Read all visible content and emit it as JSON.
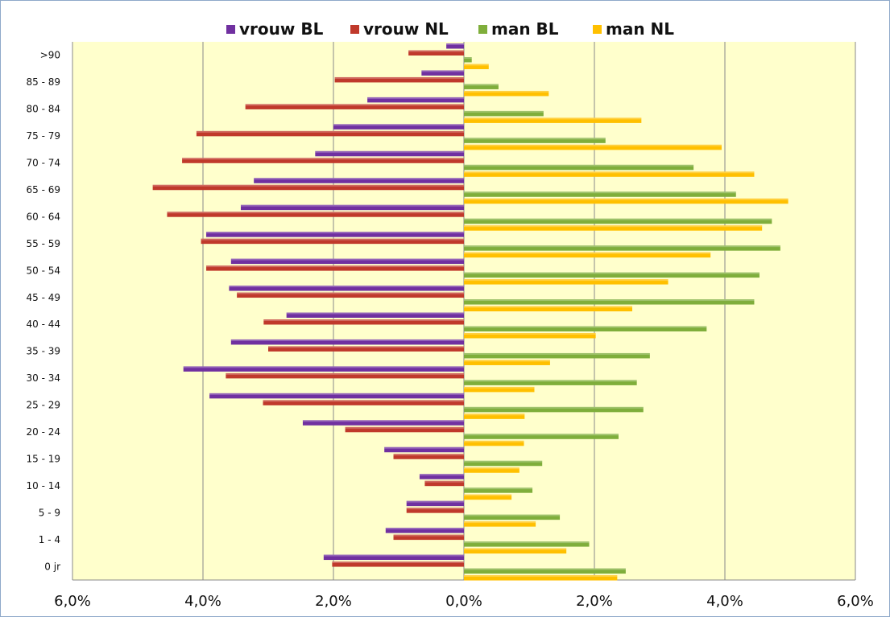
{
  "chart_data": {
    "type": "bar",
    "orientation": "horizontal",
    "categories": [
      "0 jr",
      "1 - 4",
      "5 - 9",
      "10 - 14",
      "15 - 19",
      "20 - 24",
      "25 - 29",
      "30 - 34",
      "35 - 39",
      "40 - 44",
      "45 - 49",
      "50 - 54",
      "55 - 59",
      "60 - 64",
      "65 - 69",
      "70 - 74",
      "75 - 79",
      "80 - 84",
      "85 - 89",
      ">90"
    ],
    "series": [
      {
        "name": "vrouw BL",
        "color": "#7030a0",
        "side": "left",
        "values": [
          2.15,
          1.2,
          0.88,
          0.68,
          1.22,
          2.47,
          3.9,
          4.3,
          3.57,
          2.72,
          3.6,
          3.57,
          3.95,
          3.42,
          3.22,
          2.28,
          2.0,
          1.48,
          0.65,
          0.27
        ]
      },
      {
        "name": "vrouw NL",
        "color": "#c0392b",
        "side": "left",
        "values": [
          2.02,
          1.08,
          0.88,
          0.6,
          1.08,
          1.82,
          3.08,
          3.65,
          3.0,
          3.07,
          3.48,
          3.95,
          4.03,
          4.55,
          4.77,
          4.32,
          4.1,
          3.35,
          1.98,
          0.85
        ]
      },
      {
        "name": "man BL",
        "color": "#7fae3b",
        "side": "right",
        "values": [
          2.48,
          1.92,
          1.47,
          1.05,
          1.2,
          2.37,
          2.75,
          2.65,
          2.85,
          3.72,
          4.45,
          4.53,
          4.85,
          4.72,
          4.17,
          3.52,
          2.17,
          1.22,
          0.53,
          0.12
        ]
      },
      {
        "name": "man NL",
        "color": "#ffc000",
        "side": "right",
        "values": [
          2.35,
          1.57,
          1.1,
          0.73,
          0.85,
          0.92,
          0.93,
          1.08,
          1.32,
          2.02,
          2.58,
          3.13,
          3.78,
          4.57,
          4.97,
          4.45,
          3.95,
          2.72,
          1.3,
          0.38
        ]
      }
    ],
    "x_ticks": [
      "6,0%",
      "4,0%",
      "2,0%",
      "0,0%",
      "2,0%",
      "4,0%",
      "6,0%"
    ],
    "xlim": [
      -6,
      6
    ],
    "grid": true,
    "legend_position": "top",
    "plot_background": "#ffffcc"
  }
}
